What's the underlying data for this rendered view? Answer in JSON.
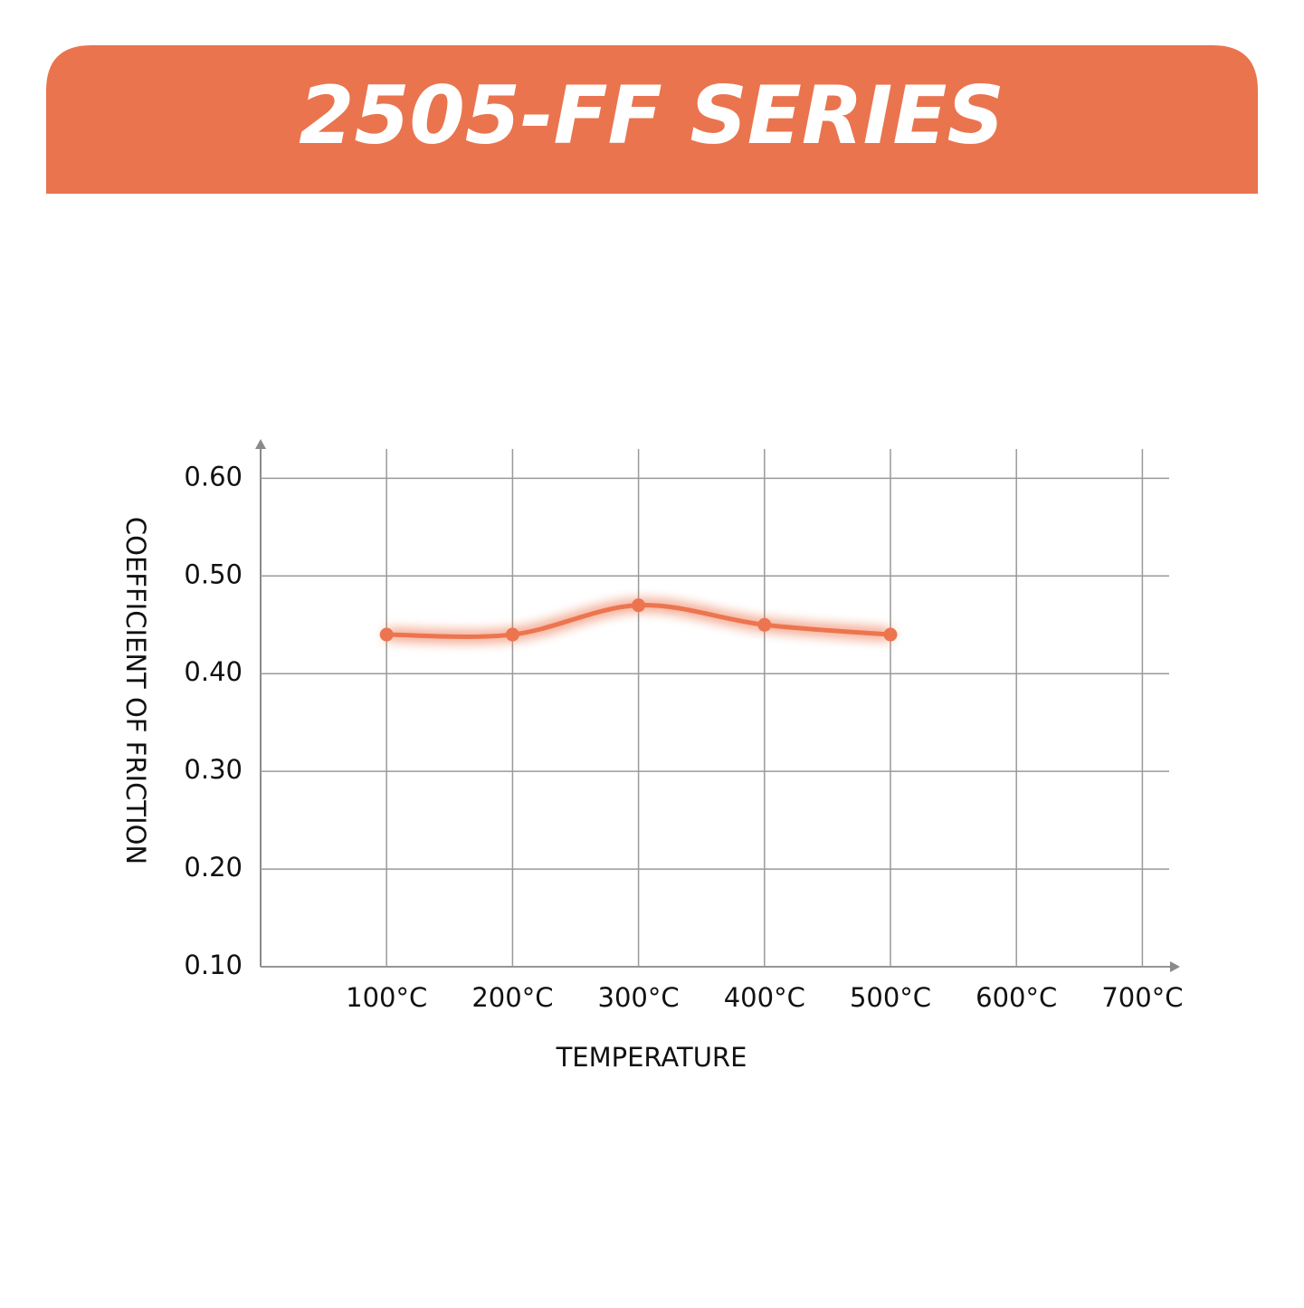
{
  "chart_data": {
    "type": "line",
    "title": "2505-FF SERIES",
    "x_label": "TEMPERATURE",
    "y_label": "COEFFICIENT OF FRICTION",
    "categories": [
      "100°C",
      "200°C",
      "300°C",
      "400°C",
      "500°C",
      "600°C",
      "700°C"
    ],
    "values": [
      0.44,
      0.44,
      0.47,
      0.45,
      0.44,
      null,
      null
    ],
    "color": "#ec7550",
    "ylim": [
      0.1,
      0.63
    ],
    "yticks": [
      {
        "value": 0.1,
        "label": "0.10"
      },
      {
        "value": 0.2,
        "label": "0.20"
      },
      {
        "value": 0.3,
        "label": "0.30"
      },
      {
        "value": 0.4,
        "label": "0.40"
      },
      {
        "value": 0.5,
        "label": "0.50"
      },
      {
        "value": 0.6,
        "label": "0.60"
      }
    ],
    "grid": true
  }
}
